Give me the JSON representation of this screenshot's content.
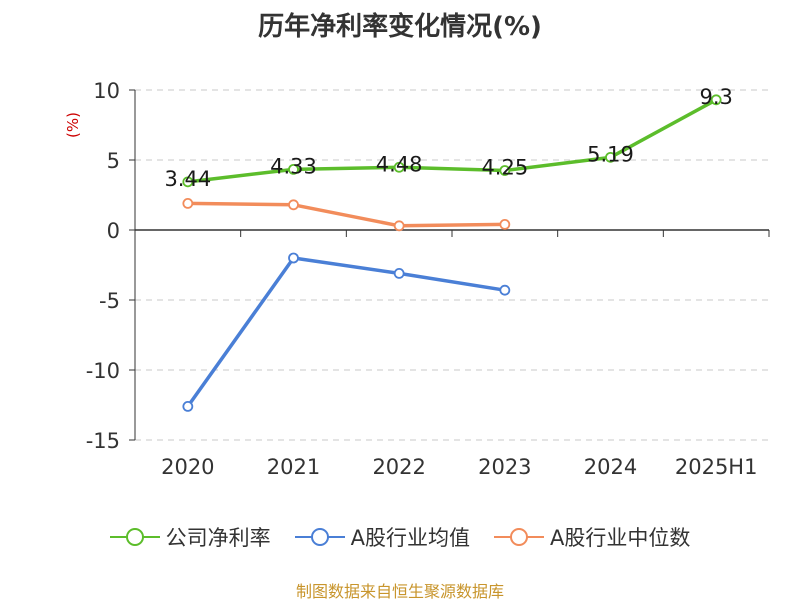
{
  "title": "历年净利率变化情况(%)",
  "source": "制图数据来自恒生聚源数据库",
  "chart_data": {
    "type": "line",
    "title": "历年净利率变化情况(%)",
    "ylabel": "(%)",
    "xlabel": "",
    "categories": [
      "2020",
      "2021",
      "2022",
      "2023",
      "2024",
      "2025H1"
    ],
    "ylim": [
      -15,
      10
    ],
    "yticks": [
      10,
      5,
      0,
      -5,
      -10,
      -15
    ],
    "ytick_labels": [
      "10",
      "5",
      "0",
      "-5",
      "-10",
      "-15"
    ],
    "grid": "horizontal dashed",
    "legend_position": "bottom",
    "series": [
      {
        "name": "公司净利率",
        "color": "#5cbd2b",
        "values": [
          3.44,
          4.33,
          4.48,
          4.25,
          5.19,
          9.3
        ],
        "data_labels": [
          "3.44",
          "4.33",
          "4.48",
          "4.25",
          "5.19",
          "9.3"
        ]
      },
      {
        "name": "A股行业均值",
        "color": "#4a7fd6",
        "values": [
          -12.6,
          -2.0,
          -3.1,
          -4.3,
          null,
          null
        ]
      },
      {
        "name": "A股行业中位数",
        "color": "#f28c5b",
        "values": [
          1.9,
          1.8,
          0.3,
          0.4,
          null,
          null
        ]
      }
    ]
  }
}
